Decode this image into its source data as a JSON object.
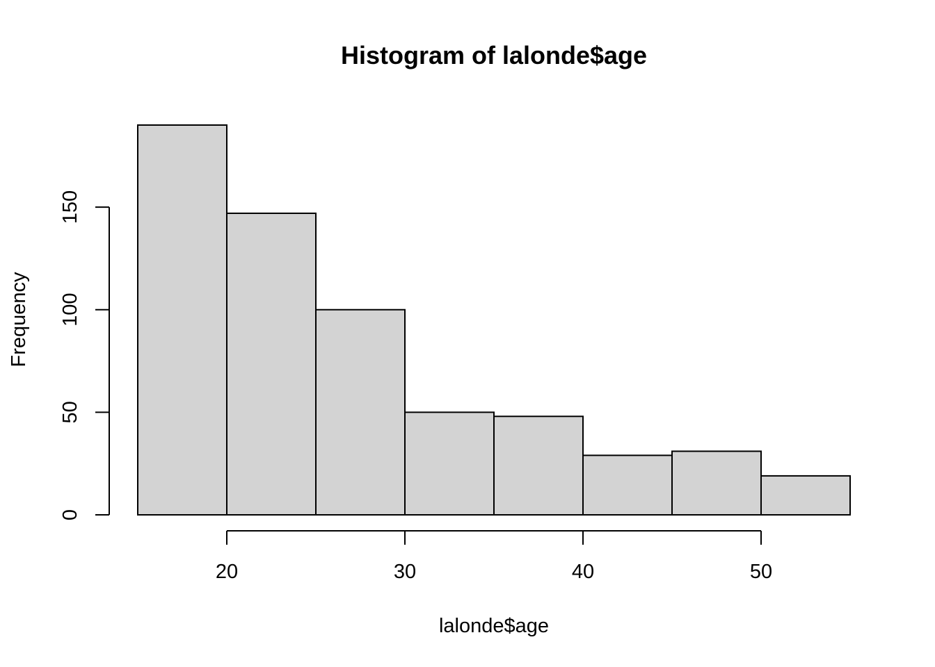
{
  "chart_data": {
    "type": "bar",
    "title": "Histogram of lalonde$age",
    "xlabel": "lalonde$age",
    "ylabel": "Frequency",
    "bins": [
      {
        "x0": 15,
        "x1": 20,
        "count": 190
      },
      {
        "x0": 20,
        "x1": 25,
        "count": 147
      },
      {
        "x0": 25,
        "x1": 30,
        "count": 100
      },
      {
        "x0": 30,
        "x1": 35,
        "count": 50
      },
      {
        "x0": 35,
        "x1": 40,
        "count": 48
      },
      {
        "x0": 40,
        "x1": 45,
        "count": 29
      },
      {
        "x0": 45,
        "x1": 50,
        "count": 31
      },
      {
        "x0": 50,
        "x1": 55,
        "count": 19
      }
    ],
    "x_ticks": [
      20,
      30,
      40,
      50
    ],
    "y_ticks": [
      0,
      50,
      100,
      150
    ],
    "xlim": [
      15,
      55
    ],
    "ylim": [
      0,
      190
    ],
    "grid": false,
    "colors": {
      "bar_fill": "#d3d3d3",
      "bar_stroke": "#000000"
    }
  }
}
